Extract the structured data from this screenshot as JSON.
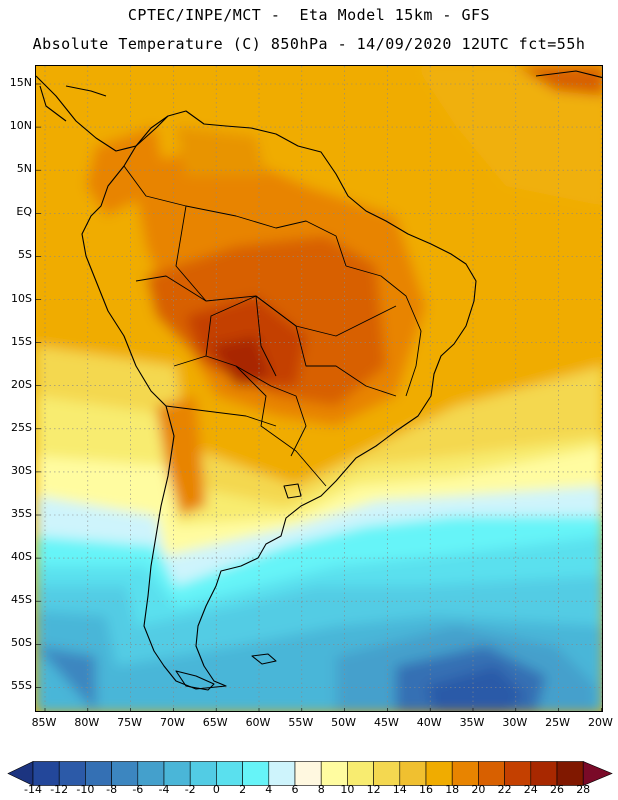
{
  "header": {
    "line1": "CPTEC/INPE/MCT -  Eta Model 15km - GFS",
    "line2": "Absolute Temperature (C) 850hPa - 14/09/2020 12UTC fct=55h"
  },
  "map": {
    "lat_labels": [
      "15N",
      "10N",
      "5N",
      "EQ",
      "5S",
      "10S",
      "15S",
      "20S",
      "25S",
      "30S",
      "35S",
      "40S",
      "45S",
      "50S",
      "55S"
    ],
    "lon_labels": [
      "85W",
      "80W",
      "75W",
      "70W",
      "65W",
      "60W",
      "55W",
      "50W",
      "45W",
      "40W",
      "35W",
      "30W",
      "25W",
      "20W"
    ]
  },
  "colorbar": {
    "labels": [
      "-14",
      "-12",
      "-10",
      "-8",
      "-6",
      "-4",
      "-2",
      "0",
      "2",
      "4",
      "6",
      "8",
      "10",
      "12",
      "14",
      "16",
      "18",
      "20",
      "22",
      "24",
      "26",
      "28"
    ],
    "colors": [
      "#23479a",
      "#2c5aa8",
      "#3470b4",
      "#3c86c0",
      "#44a0cc",
      "#4ab6d8",
      "#52cce4",
      "#5ae0ee",
      "#66f4f8",
      "#cef4fc",
      "#fff8e0",
      "#fffca0",
      "#f8ec70",
      "#f4d850",
      "#f0c030",
      "#f0ac00",
      "#e88400",
      "#d86000",
      "#c44000",
      "#a82800",
      "#801800"
    ],
    "under_color": "#1c3480",
    "over_color": "#7a0a28"
  }
}
